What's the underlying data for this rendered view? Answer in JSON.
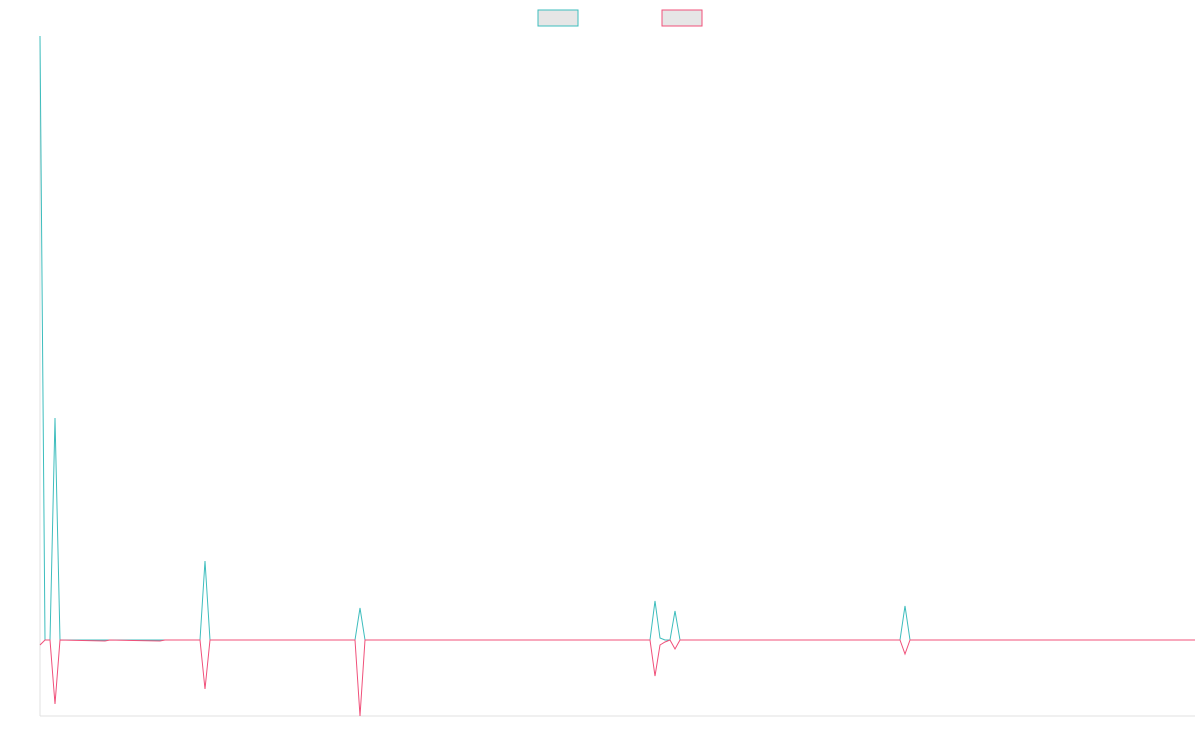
{
  "chart_data": {
    "type": "line",
    "x": [
      0,
      1,
      2,
      3,
      4,
      13,
      14,
      24,
      25,
      32,
      33,
      34,
      63,
      64,
      65,
      122,
      123,
      124,
      125,
      126,
      127,
      128,
      172,
      173,
      174,
      231
    ],
    "xlim": [
      0,
      231
    ],
    "ylim": [
      -76,
      604
    ],
    "legend": "top",
    "series": [
      {
        "color": "#3dbdbd",
        "values": [
          604,
          0,
          0,
          222,
          0,
          0,
          0,
          0,
          0,
          0,
          79,
          0,
          0,
          32,
          0,
          0,
          39,
          2,
          0,
          0,
          29,
          0,
          0,
          34,
          0,
          0
        ]
      },
      {
        "color": "#f0507a",
        "values": [
          -5,
          0,
          0,
          -64,
          0,
          -1,
          0,
          -1,
          0,
          0,
          -49,
          0,
          0,
          -76,
          0,
          0,
          -36,
          -5,
          -2,
          0,
          -9,
          0,
          0,
          -14,
          0,
          0
        ]
      }
    ]
  }
}
